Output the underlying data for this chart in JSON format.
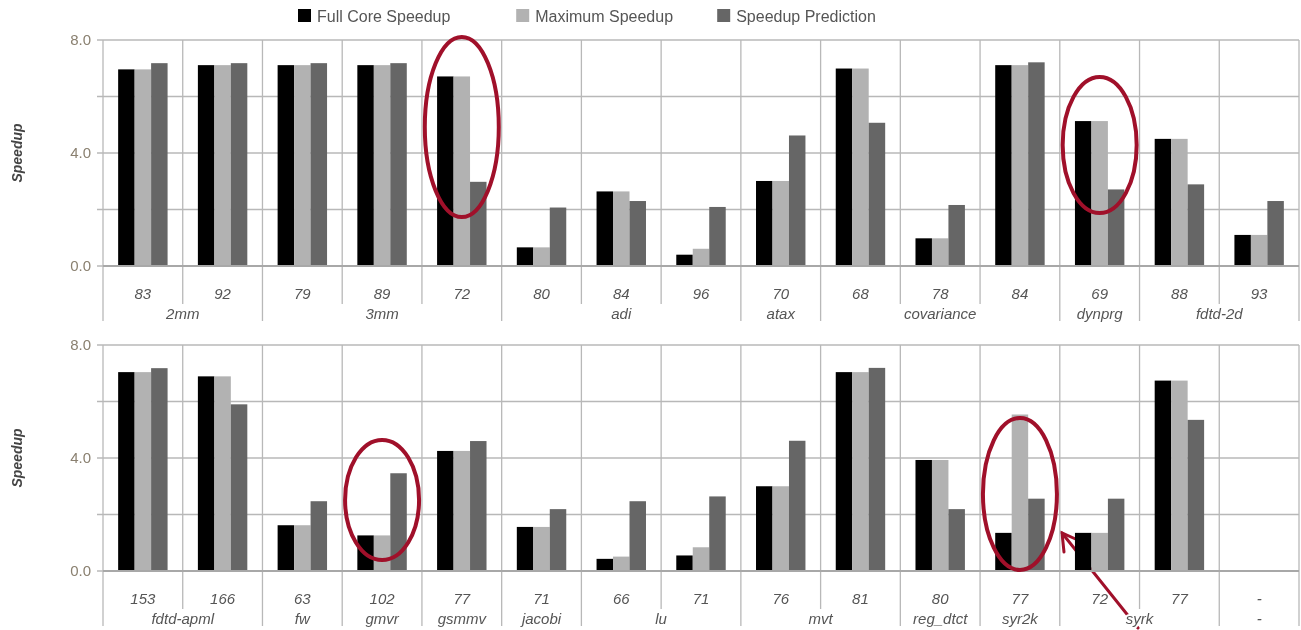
{
  "chart_data": [
    {
      "type": "bar",
      "ylabel": "Speedup",
      "categories": [
        "83",
        "92",
        "79",
        "89",
        "72",
        "80",
        "84",
        "96",
        "70",
        "68",
        "78",
        "84",
        "69",
        "88",
        "93"
      ],
      "series": [
        {
          "name": "Full Core Speedup",
          "color": "#000000",
          "values": [
            6.96,
            7.11,
            7.11,
            7.11,
            6.71,
            0.66,
            2.64,
            0.4,
            3.01,
            6.99,
            0.98,
            7.11,
            5.13,
            4.5,
            1.1
          ]
        },
        {
          "name": "Maximum Speedup",
          "color": "#b2b2b2",
          "values": [
            6.96,
            7.11,
            7.11,
            7.11,
            6.71,
            0.66,
            2.64,
            0.61,
            3.01,
            6.99,
            0.98,
            7.11,
            5.13,
            4.5,
            1.1
          ]
        },
        {
          "name": "Speedup Prediction",
          "color": "#666666",
          "values": [
            7.18,
            7.18,
            7.18,
            7.18,
            2.98,
            2.07,
            2.3,
            2.09,
            4.62,
            5.07,
            2.16,
            7.21,
            2.71,
            2.89,
            2.3
          ]
        }
      ],
      "ylim": [
        0,
        8
      ],
      "yticks": [
        {
          "value": 0,
          "label": "0.0"
        },
        {
          "value": 2,
          "label": null
        },
        {
          "value": 4,
          "label": "4.0"
        },
        {
          "value": 6,
          "label": null
        },
        {
          "value": 8,
          "label": "8.0"
        }
      ],
      "grid": true,
      "legend": "top",
      "annotations": [
        "2mm",
        "3mm",
        "adi",
        "atax",
        "covariance",
        "dynprg",
        "fdtd-2d"
      ]
    },
    {
      "type": "bar",
      "ylabel": "Speedup",
      "categories": [
        "153",
        "166",
        "63",
        "102",
        "77",
        "71",
        "66",
        "71",
        "76",
        "81",
        "80",
        "77",
        "72",
        "77",
        "-"
      ],
      "series": [
        {
          "color": "#000000",
          "values": [
            7.04,
            6.89,
            1.62,
            1.26,
            4.25,
            1.56,
            0.43,
            0.55,
            3.0,
            7.04,
            3.93,
            1.35,
            1.35,
            6.74,
            null
          ]
        },
        {
          "color": "#b2b2b2",
          "values": [
            7.04,
            6.89,
            1.62,
            1.26,
            4.25,
            1.56,
            0.51,
            0.84,
            3.0,
            7.04,
            3.93,
            5.54,
            1.35,
            6.74,
            null
          ]
        },
        {
          "color": "#666666",
          "values": [
            7.18,
            5.9,
            2.47,
            3.46,
            4.6,
            2.19,
            2.47,
            2.64,
            4.61,
            7.19,
            2.19,
            2.56,
            2.56,
            5.35,
            null
          ]
        }
      ],
      "ylim": [
        0,
        8
      ],
      "yticks": [
        {
          "value": 0,
          "label": "0.0"
        },
        {
          "value": 2,
          "label": null
        },
        {
          "value": 4,
          "label": "4.0"
        },
        {
          "value": 6,
          "label": null
        },
        {
          "value": 8,
          "label": "8.0"
        }
      ],
      "grid": true,
      "annotations": [
        "fdtd-apml",
        "fw",
        "gmvr",
        "gsmmv",
        "jacobi",
        "lu",
        "mvt",
        "reg_dtct",
        "syr2k",
        "syrk",
        "-"
      ]
    }
  ]
}
